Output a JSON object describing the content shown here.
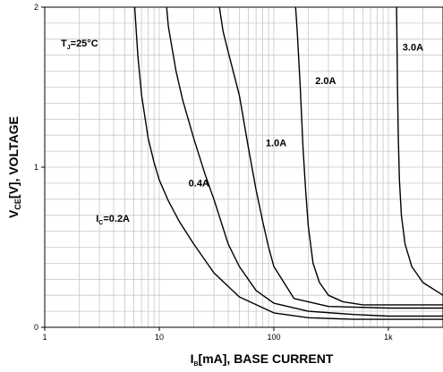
{
  "chart_data": {
    "type": "line",
    "title": "",
    "x_scale": "log",
    "xlim": [
      1,
      3000
    ],
    "ylim": [
      0,
      2
    ],
    "grid": true,
    "xlabel": {
      "main": "I",
      "sub": "B",
      "rest": "[mA], BASE CURRENT"
    },
    "ylabel": {
      "main": "V",
      "sub": "CE",
      "rest": "[V], VOLTAGE"
    },
    "x_ticks": [
      {
        "value": 1,
        "label": "1"
      },
      {
        "value": 10,
        "label": "10"
      },
      {
        "value": 100,
        "label": "100"
      },
      {
        "value": 1000,
        "label": "1k"
      }
    ],
    "y_ticks": [
      {
        "value": 0,
        "label": "0"
      },
      {
        "value": 1,
        "label": "1"
      },
      {
        "value": 2,
        "label": "2"
      }
    ],
    "condition": {
      "main": "T",
      "sub": "J",
      "rest": "=25°C"
    },
    "series": [
      {
        "name": "I_C=0.2A",
        "label_main": "I",
        "label_sub": "C",
        "label_rest": "=0.2A",
        "label_at": [
          2.8,
          0.66
        ],
        "x": [
          6.1,
          6.5,
          7,
          8,
          9,
          10,
          12,
          15,
          20,
          30,
          50,
          100,
          200,
          500,
          1000,
          2000,
          3000
        ],
        "y": [
          2.0,
          1.7,
          1.45,
          1.18,
          1.03,
          0.92,
          0.79,
          0.66,
          0.52,
          0.34,
          0.19,
          0.09,
          0.06,
          0.05,
          0.05,
          0.05,
          0.05
        ]
      },
      {
        "name": "0.4A",
        "label_main": "",
        "label_sub": "",
        "label_rest": "0.4A",
        "label_at": [
          18,
          0.88
        ],
        "x": [
          11.6,
          12,
          14,
          16,
          20,
          25,
          30,
          40,
          50,
          70,
          100,
          200,
          500,
          1000,
          2000,
          3000
        ],
        "y": [
          2.0,
          1.88,
          1.6,
          1.42,
          1.18,
          0.96,
          0.8,
          0.52,
          0.38,
          0.23,
          0.15,
          0.1,
          0.08,
          0.07,
          0.07,
          0.07
        ]
      },
      {
        "name": "1.0A",
        "label_main": "",
        "label_sub": "",
        "label_rest": "1.0A",
        "label_at": [
          85,
          1.13
        ],
        "x": [
          33.5,
          36,
          40,
          50,
          60,
          70,
          80,
          90,
          100,
          150,
          300,
          1000,
          3000
        ],
        "y": [
          2.0,
          1.85,
          1.72,
          1.45,
          1.12,
          0.86,
          0.66,
          0.5,
          0.38,
          0.18,
          0.13,
          0.12,
          0.12
        ]
      },
      {
        "name": "2.0A",
        "label_main": "",
        "label_sub": "",
        "label_rest": "2.0A",
        "label_at": [
          230,
          1.52
        ],
        "x": [
          155,
          160,
          170,
          180,
          190,
          200,
          220,
          250,
          300,
          400,
          600,
          1000,
          3000
        ],
        "y": [
          2.0,
          1.85,
          1.5,
          1.12,
          0.85,
          0.63,
          0.4,
          0.28,
          0.2,
          0.16,
          0.14,
          0.14,
          0.14
        ]
      },
      {
        "name": "3.0A",
        "label_main": "",
        "label_sub": "",
        "label_rest": "3.0A",
        "label_at": [
          1330,
          1.73
        ],
        "x": [
          1180,
          1190,
          1200,
          1220,
          1250,
          1300,
          1400,
          1600,
          2000,
          3000
        ],
        "y": [
          2.0,
          1.78,
          1.52,
          1.2,
          0.92,
          0.7,
          0.52,
          0.38,
          0.28,
          0.2
        ]
      }
    ]
  }
}
